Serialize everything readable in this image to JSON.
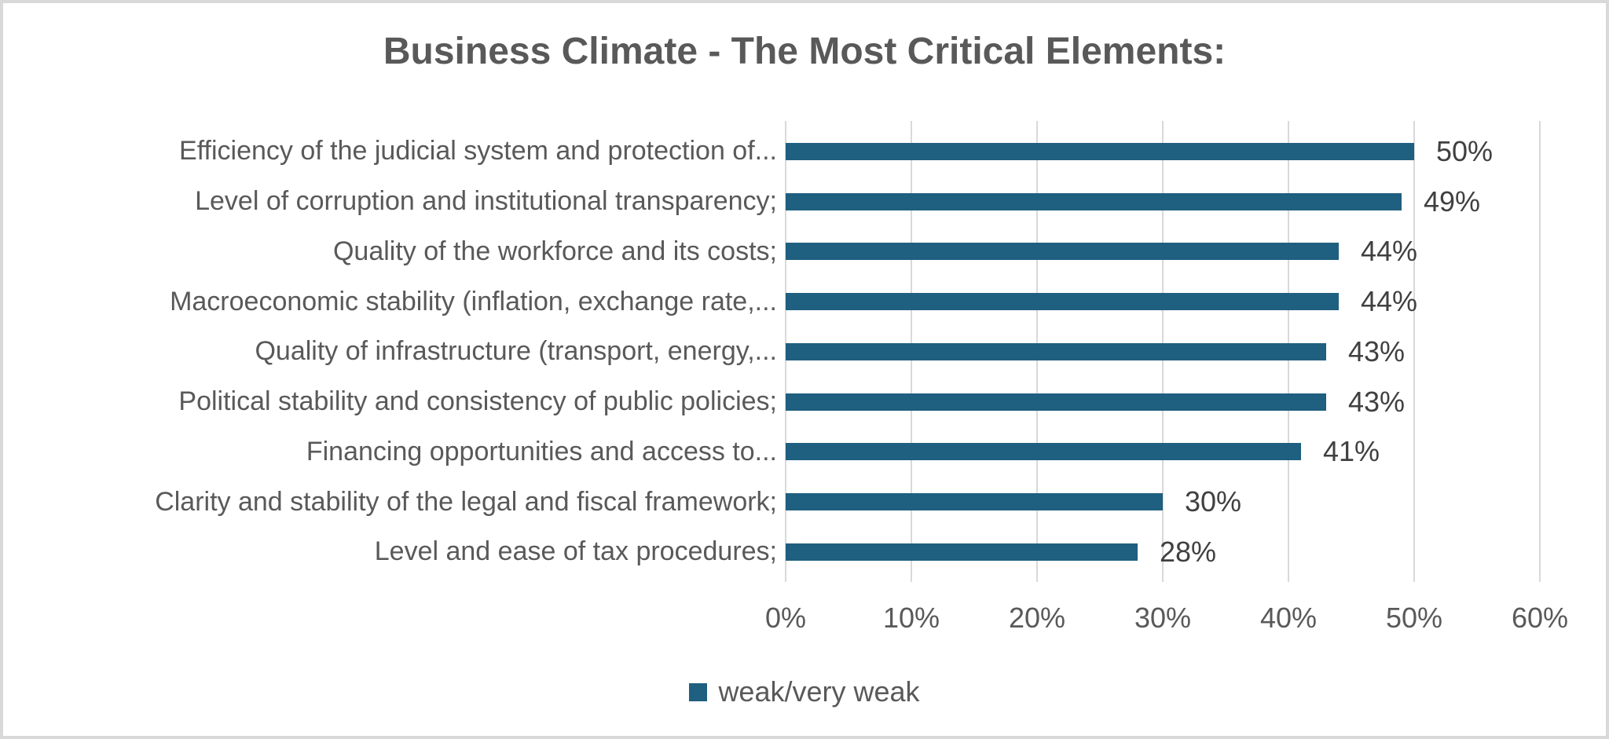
{
  "chart_data": {
    "type": "bar",
    "orientation": "horizontal",
    "title": "Business Climate - The Most Critical Elements:",
    "categories": [
      "Efficiency of the judicial system and protection of...",
      "Level of corruption and institutional transparency;",
      "Quality of the workforce and its costs;",
      "Macroeconomic stability (inflation, exchange rate,...",
      "Quality of infrastructure (transport, energy,...",
      "Political stability and consistency of public policies;",
      "Financing opportunities and access to...",
      "Clarity and stability of the legal and fiscal framework;",
      "Level and ease of tax procedures;"
    ],
    "series": [
      {
        "name": "weak/very weak",
        "values": [
          50,
          49,
          44,
          44,
          43,
          43,
          41,
          30,
          28
        ]
      }
    ],
    "value_labels": [
      "50%",
      "49%",
      "44%",
      "44%",
      "43%",
      "43%",
      "41%",
      "30%",
      "28%"
    ],
    "x_ticks": [
      "0%",
      "10%",
      "20%",
      "30%",
      "40%",
      "50%",
      "60%"
    ],
    "x_tick_values": [
      0,
      10,
      20,
      30,
      40,
      50,
      60
    ],
    "xlim": [
      0,
      60
    ],
    "grid": "vertical",
    "legend_position": "bottom",
    "colors": {
      "bar": "#1f5f7f",
      "title": "#595959",
      "category_label": "#595959",
      "data_label": "#404040",
      "axis_label": "#595959",
      "gridline": "#d9d9d9",
      "border": "#d9d9d9",
      "background": "#ffffff"
    }
  }
}
